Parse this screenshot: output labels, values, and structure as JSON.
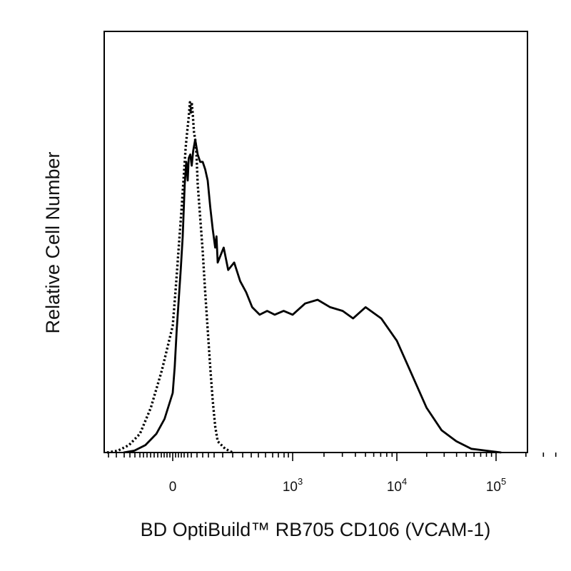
{
  "chart_data": {
    "type": "line",
    "xlabel": "BD OptiBuild™ RB705 CD106 (VCAM-1)",
    "ylabel": "Relative Cell Number",
    "x_scale": "biexponential",
    "x_ticks": [
      {
        "base": "0",
        "exp": ""
      },
      {
        "base": "10",
        "exp": "3"
      },
      {
        "base": "10",
        "exp": "4"
      },
      {
        "base": "10",
        "exp": "5"
      }
    ],
    "y_ticks_shown": false,
    "grid": false,
    "legend": "none",
    "colors": {
      "line": "#000000",
      "frame": "#000000"
    },
    "series": [
      {
        "style": "dotted",
        "points": [
          [
            -1.2,
            0
          ],
          [
            -1.0,
            0.5
          ],
          [
            -0.8,
            2
          ],
          [
            -0.6,
            5
          ],
          [
            -0.4,
            12
          ],
          [
            -0.2,
            22
          ],
          [
            0,
            34
          ],
          [
            0.15,
            44
          ],
          [
            0.3,
            55
          ],
          [
            0.45,
            66
          ],
          [
            0.55,
            74
          ],
          [
            0.65,
            82
          ],
          [
            0.72,
            86
          ],
          [
            0.8,
            90
          ],
          [
            0.86,
            94
          ],
          [
            0.9,
            91
          ],
          [
            0.95,
            94
          ],
          [
            1.0,
            91
          ],
          [
            1.05,
            86
          ],
          [
            1.1,
            84
          ],
          [
            1.15,
            80
          ],
          [
            1.2,
            72
          ],
          [
            1.3,
            63
          ],
          [
            1.4,
            54
          ],
          [
            1.5,
            43
          ],
          [
            1.6,
            33
          ],
          [
            1.7,
            23
          ],
          [
            1.8,
            14
          ],
          [
            1.9,
            7
          ],
          [
            2.0,
            3
          ],
          [
            2.1,
            1
          ],
          [
            2.2,
            0
          ]
        ]
      },
      {
        "style": "solid",
        "points": [
          [
            -0.9,
            0
          ],
          [
            -0.7,
            0.5
          ],
          [
            -0.5,
            2
          ],
          [
            -0.3,
            5
          ],
          [
            -0.15,
            9
          ],
          [
            0,
            16
          ],
          [
            0.1,
            23
          ],
          [
            0.2,
            33
          ],
          [
            0.3,
            41
          ],
          [
            0.4,
            49
          ],
          [
            0.5,
            58
          ],
          [
            0.6,
            72
          ],
          [
            0.68,
            78
          ],
          [
            0.75,
            73
          ],
          [
            0.8,
            79
          ],
          [
            0.88,
            80
          ],
          [
            0.95,
            77
          ],
          [
            1.02,
            81
          ],
          [
            1.1,
            84
          ],
          [
            1.2,
            80
          ],
          [
            1.3,
            78
          ],
          [
            1.4,
            78
          ],
          [
            1.5,
            76
          ],
          [
            1.6,
            73
          ],
          [
            1.7,
            66
          ],
          [
            1.8,
            60
          ],
          [
            1.9,
            55
          ],
          [
            1.95,
            58
          ],
          [
            2.0,
            51
          ],
          [
            2.08,
            55
          ],
          [
            2.14,
            49
          ],
          [
            2.22,
            51
          ],
          [
            2.3,
            46
          ],
          [
            2.38,
            43
          ],
          [
            2.46,
            39
          ],
          [
            2.56,
            37
          ],
          [
            2.66,
            38
          ],
          [
            2.76,
            37
          ],
          [
            2.88,
            38
          ],
          [
            3.0,
            37
          ],
          [
            3.12,
            40
          ],
          [
            3.24,
            41
          ],
          [
            3.36,
            39
          ],
          [
            3.48,
            38
          ],
          [
            3.58,
            36
          ],
          [
            3.7,
            39
          ],
          [
            3.85,
            36
          ],
          [
            4.0,
            30
          ],
          [
            4.15,
            21
          ],
          [
            4.3,
            12
          ],
          [
            4.45,
            6
          ],
          [
            4.6,
            3
          ],
          [
            4.75,
            1
          ],
          [
            4.9,
            0.5
          ],
          [
            5.1,
            0
          ]
        ]
      }
    ],
    "xlim": [
      -1.2,
      5.6
    ],
    "ylim": [
      0,
      110
    ]
  }
}
